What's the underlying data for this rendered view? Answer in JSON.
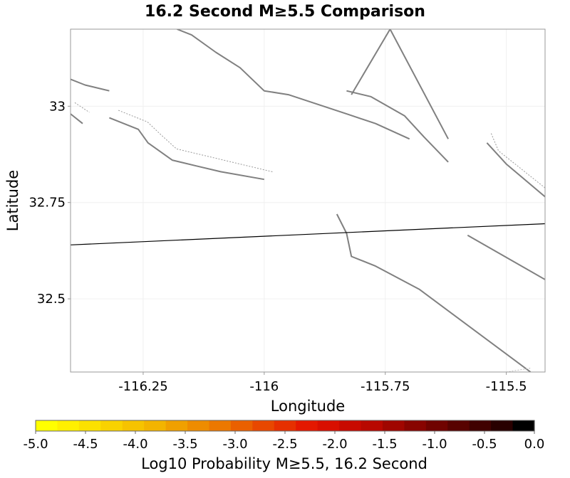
{
  "chart_data": {
    "type": "map",
    "title": "16.2 Second M≥5.5 Comparison",
    "xlabel": "Longitude",
    "ylabel": "Latitude",
    "xlim": [
      -116.4,
      -115.42
    ],
    "ylim": [
      32.31,
      33.2
    ],
    "x_ticks": [
      -116.25,
      -116,
      -115.75,
      -115.5
    ],
    "x_tick_labels": [
      "-116.25",
      "-116",
      "-115.75",
      "-115.5"
    ],
    "y_ticks": [
      33,
      32.75,
      32.5
    ],
    "y_tick_labels": [
      "33",
      "32.75",
      "32.5"
    ],
    "grid": true,
    "fault_color": "#808080",
    "border_color": "#000000",
    "faults": [
      [
        [
          -116.4,
          33.07
        ],
        [
          -116.37,
          33.055
        ],
        [
          -116.32,
          33.04
        ]
      ],
      [
        [
          -116.4,
          32.98
        ],
        [
          -116.375,
          32.955
        ]
      ],
      [
        [
          -116.32,
          32.97
        ],
        [
          -116.26,
          32.94
        ],
        [
          -116.24,
          32.905
        ],
        [
          -116.19,
          32.86
        ],
        [
          -116.14,
          32.845
        ],
        [
          -116.09,
          32.83
        ],
        [
          -116.0,
          32.81
        ]
      ],
      [
        [
          -116.18,
          33.2
        ],
        [
          -116.15,
          33.185
        ],
        [
          -116.1,
          33.14
        ],
        [
          -116.05,
          33.1
        ],
        [
          -116.0,
          33.04
        ],
        [
          -115.95,
          33.03
        ],
        [
          -115.89,
          33.005
        ],
        [
          -115.83,
          32.98
        ],
        [
          -115.77,
          32.955
        ],
        [
          -115.7,
          32.915
        ]
      ],
      [
        [
          -115.83,
          33.04
        ],
        [
          -115.78,
          33.025
        ],
        [
          -115.71,
          32.975
        ],
        [
          -115.67,
          32.92
        ],
        [
          -115.62,
          32.855
        ]
      ],
      [
        [
          -115.82,
          33.03
        ],
        [
          -115.74,
          33.2
        ],
        [
          -115.62,
          32.915
        ]
      ],
      [
        [
          -115.54,
          32.905
        ],
        [
          -115.5,
          32.85
        ],
        [
          -115.42,
          32.765
        ]
      ],
      [
        [
          -115.85,
          32.72
        ],
        [
          -115.83,
          32.67
        ],
        [
          -115.82,
          32.61
        ],
        [
          -115.8,
          32.6
        ],
        [
          -115.77,
          32.585
        ],
        [
          -115.68,
          32.525
        ],
        [
          -115.45,
          32.31
        ]
      ],
      [
        [
          -115.58,
          32.665
        ],
        [
          -115.42,
          32.55
        ]
      ]
    ],
    "fault_outlines": [
      [
        [
          -116.4,
          33.0
        ],
        [
          -116.37,
          32.975
        ]
      ],
      [
        [
          -116.31,
          32.98
        ],
        [
          -116.25,
          32.95
        ],
        [
          -116.225,
          32.92
        ],
        [
          -116.19,
          32.88
        ],
        [
          -116.14,
          32.865
        ],
        [
          -115.99,
          32.82
        ]
      ],
      [
        [
          -115.54,
          32.92
        ],
        [
          -115.525,
          32.875
        ],
        [
          -115.42,
          32.77
        ]
      ]
    ],
    "border": [
      [
        -116.4,
        32.64
      ],
      [
        -115.42,
        32.695
      ]
    ],
    "bottom_fault": [
      [
        -115.5,
        32.31
      ],
      [
        -115.45,
        32.32
      ]
    ],
    "colorbar": {
      "label": "Log10 Probability M≥5.5, 16.2 Second",
      "vmin": -5.0,
      "vmax": 0.0,
      "tick_values": [
        -5.0,
        -4.5,
        -4.0,
        -3.5,
        -3.0,
        -2.5,
        -2.0,
        -1.5,
        -1.0,
        -0.5,
        0.0
      ],
      "tick_labels": [
        "-5.0",
        "-4.5",
        "-4.0",
        "-3.5",
        "-3.0",
        "-2.5",
        "-2.0",
        "-1.5",
        "-1.0",
        "-0.5",
        "0.0"
      ],
      "colors": [
        "#ffff00",
        "#fff000",
        "#fce100",
        "#f9d200",
        "#f6c300",
        "#f3b400",
        "#f0a000",
        "#ee8c00",
        "#ec7800",
        "#ea6000",
        "#e84800",
        "#e63000",
        "#e41800",
        "#d80f00",
        "#c80a00",
        "#b80800",
        "#a00600",
        "#880400",
        "#700300",
        "#580200",
        "#400100",
        "#280000",
        "#000000"
      ]
    }
  }
}
